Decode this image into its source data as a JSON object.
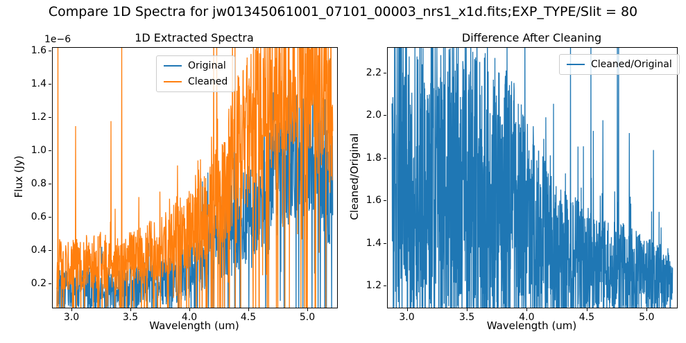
{
  "figure": {
    "suptitle": "Compare 1D Spectra for jw01345061001_07101_00003_nrs1_x1d.fits;EXP_TYPE/Slit = 80",
    "background": "#ffffff"
  },
  "colors": {
    "original_line": "#1f77b4",
    "cleaned_line": "#ff7f0e",
    "axis": "#000000",
    "legend_border": "#cccccc"
  },
  "chart_data": [
    {
      "type": "line",
      "title": "1D Extracted Spectra",
      "xlabel": "Wavelength (um)",
      "ylabel": "Flux (Jy)",
      "y_offset_text": "1e−6",
      "y_unit_scale": "1e-6",
      "grid": false,
      "legend": {
        "location": "upper center",
        "entries": [
          "Original",
          "Cleaned"
        ]
      },
      "xlim": [
        2.835,
        5.247
      ],
      "ylim": [
        0.06,
        1.62
      ],
      "x_data_range": [
        2.87,
        5.21
      ],
      "xticks": {
        "values": [
          3.0,
          3.5,
          4.0,
          4.5,
          5.0
        ],
        "labels": [
          "3.0",
          "3.5",
          "4.0",
          "4.5",
          "5.0"
        ]
      },
      "yticks": {
        "values": [
          0.2,
          0.4,
          0.6,
          0.8,
          1.0,
          1.2,
          1.4,
          1.6
        ],
        "labels": [
          "0.2",
          "0.4",
          "0.6",
          "0.8",
          "1.0",
          "1.2",
          "1.4",
          "1.6"
        ]
      },
      "series": [
        {
          "name": "Original",
          "color": "#1f77b4",
          "n_points": 1000,
          "outlier_rate": 0.07,
          "down_spike_rate": 0.05,
          "envelope": [
            [
              2.87,
              0.17,
              0.12
            ],
            [
              3.0,
              0.17,
              0.12
            ],
            [
              3.2,
              0.19,
              0.13
            ],
            [
              3.4,
              0.17,
              0.12
            ],
            [
              3.6,
              0.2,
              0.13
            ],
            [
              3.8,
              0.22,
              0.14
            ],
            [
              4.0,
              0.28,
              0.18
            ],
            [
              4.2,
              0.45,
              0.25
            ],
            [
              4.4,
              0.55,
              0.3
            ],
            [
              4.6,
              0.7,
              0.35
            ],
            [
              4.8,
              0.9,
              0.4
            ],
            [
              5.0,
              1.05,
              0.42
            ],
            [
              5.1,
              1.0,
              0.45
            ],
            [
              5.21,
              0.75,
              0.4
            ]
          ],
          "spikes": [
            [
              4.63,
              1.5
            ],
            [
              4.78,
              1.45
            ],
            [
              5.02,
              1.58
            ],
            [
              5.07,
              1.4
            ]
          ]
        },
        {
          "name": "Cleaned",
          "color": "#ff7f0e",
          "n_points": 1000,
          "outlier_rate": 0.07,
          "down_spike_rate": 0.05,
          "envelope": [
            [
              2.87,
              0.33,
              0.16
            ],
            [
              3.0,
              0.32,
              0.16
            ],
            [
              3.2,
              0.34,
              0.17
            ],
            [
              3.4,
              0.32,
              0.16
            ],
            [
              3.6,
              0.38,
              0.18
            ],
            [
              3.8,
              0.44,
              0.2
            ],
            [
              4.0,
              0.55,
              0.25
            ],
            [
              4.2,
              0.75,
              0.4
            ],
            [
              4.4,
              1.0,
              0.45
            ],
            [
              4.6,
              1.25,
              0.5
            ],
            [
              4.8,
              1.45,
              0.5
            ],
            [
              5.0,
              1.5,
              0.5
            ],
            [
              5.21,
              1.2,
              0.5
            ]
          ],
          "spikes": [
            [
              2.88,
              1.8,
              0.0
            ],
            [
              3.03,
              1.15
            ],
            [
              3.33,
              1.18
            ],
            [
              3.42,
              1.8,
              0.0
            ],
            [
              4.2,
              1.8,
              0.0
            ],
            [
              4.38,
              1.8,
              0.0
            ],
            [
              4.84,
              1.8,
              0.0
            ],
            [
              5.15,
              1.8,
              0.0
            ]
          ]
        }
      ]
    },
    {
      "type": "line",
      "title": "Difference After Cleaning",
      "xlabel": "Wavelength (um)",
      "ylabel": "Cleaned/Original",
      "y_offset_text": "",
      "y_unit_scale": "1",
      "grid": false,
      "legend": {
        "location": "upper right",
        "entries": [
          "Cleaned/Original"
        ]
      },
      "xlim": [
        2.835,
        5.247
      ],
      "ylim": [
        1.1,
        2.32
      ],
      "x_data_range": [
        2.87,
        5.21
      ],
      "xticks": {
        "values": [
          3.0,
          3.5,
          4.0,
          4.5,
          5.0
        ],
        "labels": [
          "3.0",
          "3.5",
          "4.0",
          "4.5",
          "5.0"
        ]
      },
      "yticks": {
        "values": [
          1.2,
          1.4,
          1.6,
          1.8,
          2.0,
          2.2
        ],
        "labels": [
          "1.2",
          "1.4",
          "1.6",
          "1.8",
          "2.0",
          "2.2"
        ]
      },
      "series": [
        {
          "name": "Cleaned/Original",
          "color": "#1f77b4",
          "n_points": 1500,
          "outlier_rate": 0.1,
          "down_spike_rate": 0.06,
          "envelope": [
            [
              2.87,
              1.75,
              0.65
            ],
            [
              3.0,
              1.75,
              0.65
            ],
            [
              3.2,
              1.72,
              0.65
            ],
            [
              3.4,
              1.75,
              0.65
            ],
            [
              3.6,
              1.7,
              0.62
            ],
            [
              3.8,
              1.65,
              0.6
            ],
            [
              4.0,
              1.55,
              0.5
            ],
            [
              4.1,
              1.45,
              0.4
            ],
            [
              4.2,
              1.4,
              0.32
            ],
            [
              4.4,
              1.35,
              0.28
            ],
            [
              4.6,
              1.3,
              0.22
            ],
            [
              4.8,
              1.28,
              0.22
            ],
            [
              5.0,
              1.25,
              0.18
            ],
            [
              5.21,
              1.2,
              0.15
            ]
          ],
          "spikes": [
            [
              4.36,
              2.45,
              1.02
            ],
            [
              4.53,
              2.45
            ],
            [
              4.55,
              1.93
            ],
            [
              4.63,
              1.98
            ],
            [
              4.75,
              2.45
            ],
            [
              4.76,
              2.45,
              1.02
            ],
            [
              4.85,
              1.92
            ],
            [
              5.05,
              1.84
            ]
          ]
        }
      ]
    }
  ]
}
